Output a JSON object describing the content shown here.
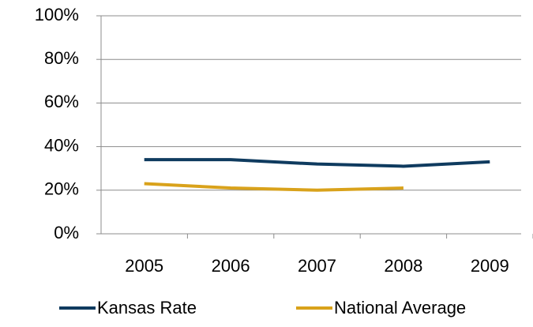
{
  "chart_data": {
    "type": "line",
    "categories": [
      "2005",
      "2006",
      "2007",
      "2008",
      "2009"
    ],
    "series": [
      {
        "name": "Kansas Rate",
        "color": "#0f3b5f",
        "values": [
          34,
          34,
          32,
          31,
          33
        ]
      },
      {
        "name": "National Average",
        "color": "#d9a21b",
        "values": [
          23,
          21,
          20,
          21,
          null
        ]
      }
    ],
    "ylim": [
      0,
      100
    ],
    "yticks": [
      {
        "value": 0,
        "label": "0%"
      },
      {
        "value": 20,
        "label": "20%"
      },
      {
        "value": 40,
        "label": "40%"
      },
      {
        "value": 60,
        "label": "60%"
      },
      {
        "value": 80,
        "label": "80%"
      },
      {
        "value": 100,
        "label": "100%"
      }
    ],
    "grid": true,
    "legend": "bottom"
  }
}
